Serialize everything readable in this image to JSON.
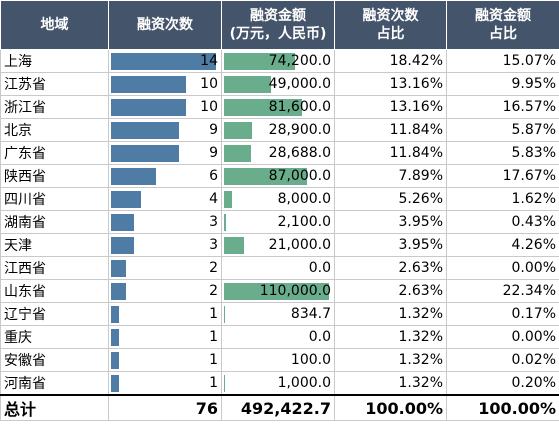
{
  "headers": {
    "region": "地域",
    "count": "融资次数",
    "amount_line1": "融资金额",
    "amount_line2": "(万元，人民币)",
    "count_share_line1": "融资次数",
    "count_share_line2": "占比",
    "amount_share_line1": "融资金额",
    "amount_share_line2": "占比"
  },
  "colors": {
    "header_bg": "#44546a",
    "count_bar": "#4f7ca4",
    "amount_bar": "#6aad8c"
  },
  "rows": [
    {
      "region": "上海",
      "count": "14",
      "count_n": 14,
      "amount": "74,200.0",
      "amount_n": 74200,
      "count_share": "18.42%",
      "amount_share": "15.07%"
    },
    {
      "region": "江苏省",
      "count": "10",
      "count_n": 10,
      "amount": "49,000.0",
      "amount_n": 49000,
      "count_share": "13.16%",
      "amount_share": "9.95%"
    },
    {
      "region": "浙江省",
      "count": "10",
      "count_n": 10,
      "amount": "81,600.0",
      "amount_n": 81600,
      "count_share": "13.16%",
      "amount_share": "16.57%"
    },
    {
      "region": "北京",
      "count": "9",
      "count_n": 9,
      "amount": "28,900.0",
      "amount_n": 28900,
      "count_share": "11.84%",
      "amount_share": "5.87%"
    },
    {
      "region": "广东省",
      "count": "9",
      "count_n": 9,
      "amount": "28,688.0",
      "amount_n": 28688,
      "count_share": "11.84%",
      "amount_share": "5.83%"
    },
    {
      "region": "陕西省",
      "count": "6",
      "count_n": 6,
      "amount": "87,000.0",
      "amount_n": 87000,
      "count_share": "7.89%",
      "amount_share": "17.67%"
    },
    {
      "region": "四川省",
      "count": "4",
      "count_n": 4,
      "amount": "8,000.0",
      "amount_n": 8000,
      "count_share": "5.26%",
      "amount_share": "1.62%"
    },
    {
      "region": "湖南省",
      "count": "3",
      "count_n": 3,
      "amount": "2,100.0",
      "amount_n": 2100,
      "count_share": "3.95%",
      "amount_share": "0.43%"
    },
    {
      "region": "天津",
      "count": "3",
      "count_n": 3,
      "amount": "21,000.0",
      "amount_n": 21000,
      "count_share": "3.95%",
      "amount_share": "4.26%"
    },
    {
      "region": "江西省",
      "count": "2",
      "count_n": 2,
      "amount": "0.0",
      "amount_n": 0,
      "count_share": "2.63%",
      "amount_share": "0.00%"
    },
    {
      "region": "山东省",
      "count": "2",
      "count_n": 2,
      "amount": "110,000.0",
      "amount_n": 110000,
      "count_share": "2.63%",
      "amount_share": "22.34%"
    },
    {
      "region": "辽宁省",
      "count": "1",
      "count_n": 1,
      "amount": "834.7",
      "amount_n": 834.7,
      "count_share": "1.32%",
      "amount_share": "0.17%"
    },
    {
      "region": "重庆",
      "count": "1",
      "count_n": 1,
      "amount": "0.0",
      "amount_n": 0,
      "count_share": "1.32%",
      "amount_share": "0.00%"
    },
    {
      "region": "安徽省",
      "count": "1",
      "count_n": 1,
      "amount": "100.0",
      "amount_n": 100,
      "count_share": "1.32%",
      "amount_share": "0.02%"
    },
    {
      "region": "河南省",
      "count": "1",
      "count_n": 1,
      "amount": "1,000.0",
      "amount_n": 1000,
      "count_share": "1.32%",
      "amount_share": "0.20%"
    }
  ],
  "total": {
    "region": "总计",
    "count": "76",
    "amount": "492,422.7",
    "count_share": "100.00%",
    "amount_share": "100.00%"
  }
}
